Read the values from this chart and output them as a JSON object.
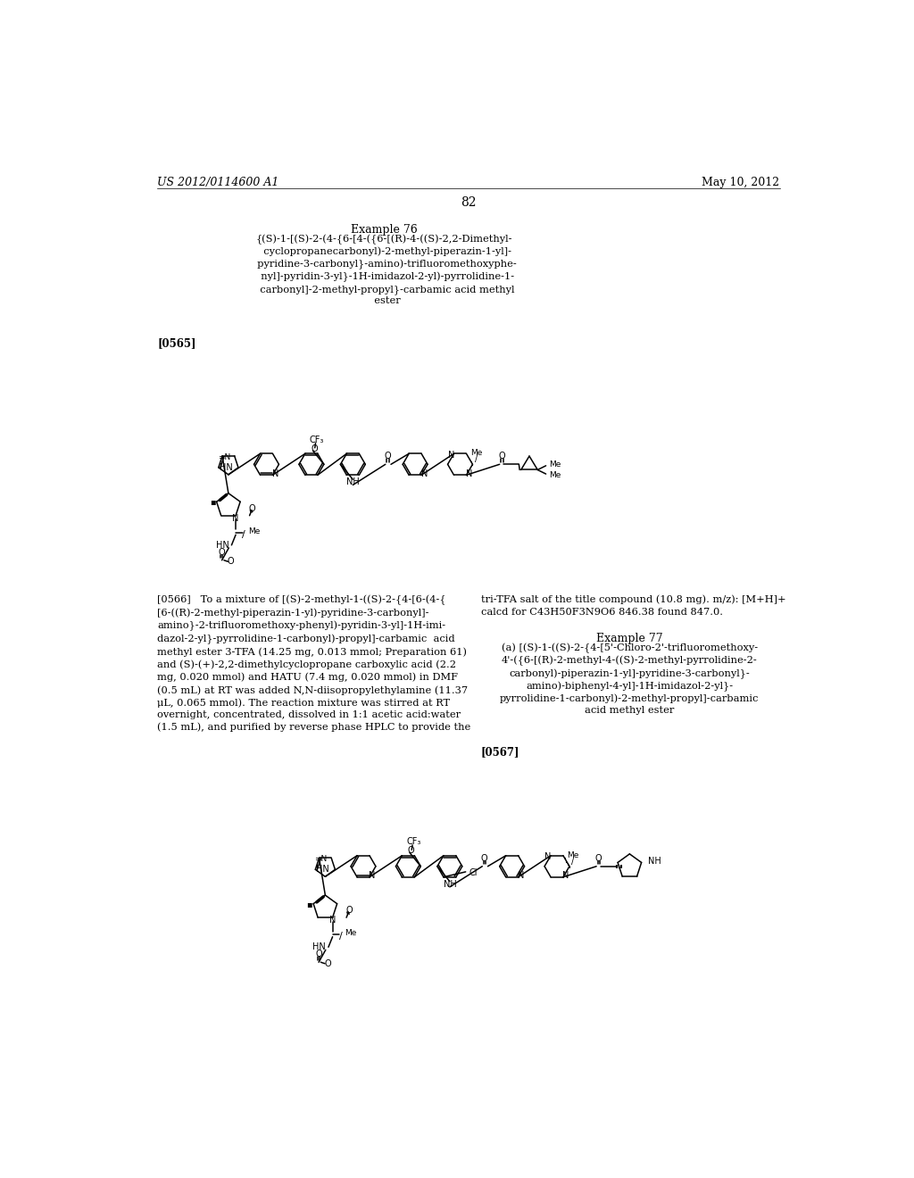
{
  "page_header_left": "US 2012/0114600 A1",
  "page_header_right": "May 10, 2012",
  "page_number": "82",
  "example76_title": "Example 76",
  "example76_name": "{(S)-1-[(S)-2-(4-{6-[4-({6-[(R)-4-((S)-2,2-Dimethyl-\n  cyclopropanecarbonyl)-2-methyl-piperazin-1-yl]-\n  pyridine-3-carbonyl}-amino)-trifluoromethoxyphe-\n  nyl]-pyridin-3-yl}-1H-imidazol-2-yl)-pyrrolidine-1-\n  carbonyl]-2-methyl-propyl}-carbamic acid methyl\n  ester",
  "ref0565": "[0565]",
  "ref0566_left": "[0566]   To a mixture of [(S)-2-methyl-1-((S)-2-{4-[6-(4-{\n[6-((R)-2-methyl-piperazin-1-yl)-pyridine-3-carbonyl]-\namino}-2-trifluoromethoxy-phenyl)-pyridin-3-yl]-1H-imi-\ndazol-2-yl}-pyrrolidine-1-carbonyl)-propyl]-carbamic  acid\nmethyl ester 3-TFA (14.25 mg, 0.013 mmol; Preparation 61)\nand (S)-(+)-2,2-dimethylcyclopropane carboxylic acid (2.2\nmg, 0.020 mmol) and HATU (7.4 mg, 0.020 mmol) in DMF\n(0.5 mL) at RT was added N,N-diisopropylethylamine (11.37\nμL, 0.065 mmol). The reaction mixture was stirred at RT\novernight, concentrated, dissolved in 1:1 acetic acid:water\n(1.5 mL), and purified by reverse phase HPLC to provide the",
  "ref0566_right": "tri-TFA salt of the title compound (10.8 mg). m/z): [M+H]+\ncalcd for C43H50F3N9O6 846.38 found 847.0.",
  "example77_title": "Example 77",
  "example77_name": "(a) [(S)-1-((S)-2-{4-[5'-Chloro-2'-trifluoromethoxy-\n4'-({6-[(R)-2-methyl-4-((S)-2-methyl-pyrrolidine-2-\ncarbonyl)-piperazin-1-yl]-pyridine-3-carbonyl}-\namino)-biphenyl-4-yl]-1H-imidazol-2-yl}-\npyrrolidine-1-carbonyl)-2-methyl-propyl]-carbamic\nacid methyl ester",
  "ref0567": "[0567]",
  "background_color": "#ffffff",
  "text_color": "#000000"
}
